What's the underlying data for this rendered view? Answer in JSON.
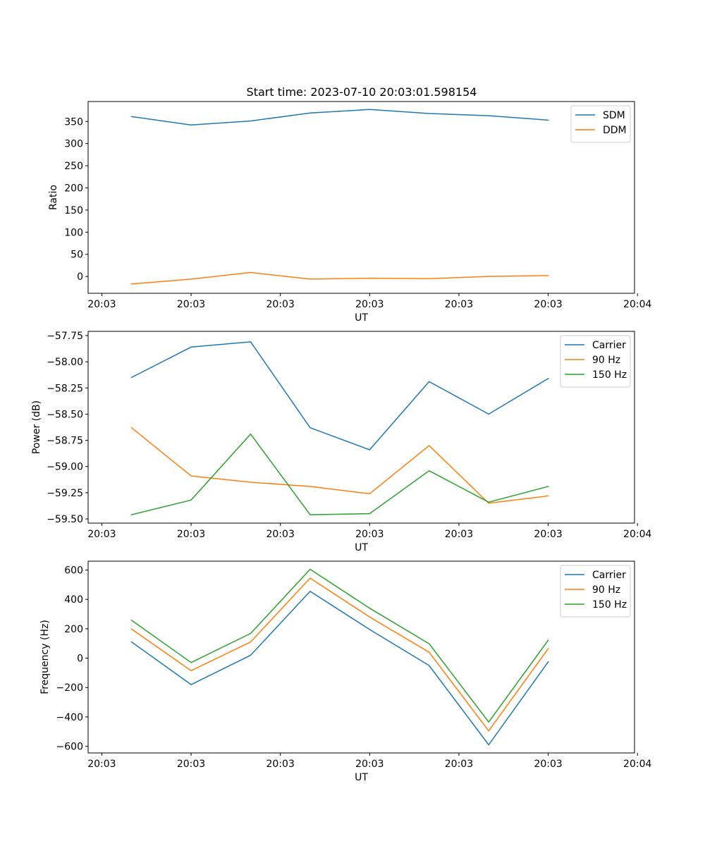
{
  "title": "Start time: 2023-07-10 20:03:01.598154",
  "chart_data": [
    {
      "type": "line",
      "title": "Start time: 2023-07-10 20:03:01.598154",
      "xlabel": "UT",
      "ylabel": "Ratio",
      "x": [
        1,
        2,
        3,
        4,
        5,
        6,
        7,
        8
      ],
      "xlim": [
        0.27,
        9.45
      ],
      "x_ticks": [
        0.5,
        2,
        3.5,
        5,
        6.5,
        8,
        9.5
      ],
      "x_tick_labels": [
        "20:03",
        "20:03",
        "20:03",
        "20:03",
        "20:03",
        "20:03",
        "20:04"
      ],
      "ylim": [
        -38,
        395
      ],
      "y_ticks": [
        0,
        50,
        100,
        150,
        200,
        250,
        300,
        350
      ],
      "y_tick_labels": [
        "0",
        "50",
        "100",
        "150",
        "200",
        "250",
        "300",
        "350"
      ],
      "legend_position": "top-right",
      "series": [
        {
          "name": "SDM",
          "color": "#1f77b4",
          "values": [
            361,
            342,
            351,
            369,
            377,
            368,
            363,
            353
          ]
        },
        {
          "name": "DDM",
          "color": "#ff7f0e",
          "values": [
            -17,
            -6,
            9,
            -6,
            -4,
            -5,
            0,
            2
          ]
        }
      ]
    },
    {
      "type": "line",
      "title": "",
      "xlabel": "UT",
      "ylabel": "Power (dB)",
      "x": [
        1,
        2,
        3,
        4,
        5,
        6,
        7,
        8
      ],
      "xlim": [
        0.27,
        9.45
      ],
      "x_ticks": [
        0.5,
        2,
        3.5,
        5,
        6.5,
        8,
        9.5
      ],
      "x_tick_labels": [
        "20:03",
        "20:03",
        "20:03",
        "20:03",
        "20:03",
        "20:03",
        "20:04"
      ],
      "ylim": [
        -59.54,
        -57.71
      ],
      "y_ticks": [
        -59.5,
        -59.25,
        -59.0,
        -58.75,
        -58.5,
        -58.25,
        -58.0,
        -57.75
      ],
      "y_tick_labels": [
        "−59.50",
        "−59.25",
        "−59.00",
        "−58.75",
        "−58.50",
        "−58.25",
        "−58.00",
        "−57.75"
      ],
      "legend_position": "top-right",
      "series": [
        {
          "name": "Carrier",
          "color": "#1f77b4",
          "values": [
            -58.15,
            -57.86,
            -57.81,
            -58.63,
            -58.84,
            -58.19,
            -58.5,
            -58.16
          ]
        },
        {
          "name": "90 Hz",
          "color": "#ff7f0e",
          "values": [
            -58.63,
            -59.09,
            -59.15,
            -59.19,
            -59.26,
            -58.8,
            -59.35,
            -59.28
          ]
        },
        {
          "name": "150 Hz",
          "color": "#2ca02c",
          "values": [
            -59.46,
            -59.32,
            -58.69,
            -59.46,
            -59.45,
            -59.04,
            -59.34,
            -59.19
          ]
        }
      ]
    },
    {
      "type": "line",
      "title": "",
      "xlabel": "UT",
      "ylabel": "Frequency (Hz)",
      "x": [
        1,
        2,
        3,
        4,
        5,
        6,
        7,
        8
      ],
      "xlim": [
        0.27,
        9.45
      ],
      "x_ticks": [
        0.5,
        2,
        3.5,
        5,
        6.5,
        8,
        9.5
      ],
      "x_tick_labels": [
        "20:03",
        "20:03",
        "20:03",
        "20:03",
        "20:03",
        "20:03",
        "20:04"
      ],
      "ylim": [
        -645,
        660
      ],
      "y_ticks": [
        -600,
        -400,
        -200,
        0,
        200,
        400,
        600
      ],
      "y_tick_labels": [
        "−600",
        "−400",
        "−200",
        "0",
        "200",
        "400",
        "600"
      ],
      "legend_position": "top-right",
      "series": [
        {
          "name": "Carrier",
          "color": "#1f77b4",
          "values": [
            110,
            -180,
            20,
            455,
            195,
            -50,
            -590,
            -25
          ]
        },
        {
          "name": "90 Hz",
          "color": "#ff7f0e",
          "values": [
            198,
            -85,
            110,
            545,
            280,
            40,
            -495,
            65
          ]
        },
        {
          "name": "150 Hz",
          "color": "#2ca02c",
          "values": [
            258,
            -30,
            168,
            605,
            340,
            98,
            -435,
            122
          ]
        }
      ]
    }
  ]
}
